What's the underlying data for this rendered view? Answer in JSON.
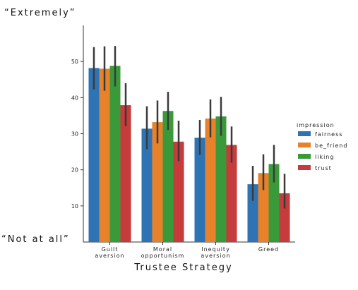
{
  "chart_data": {
    "type": "bar",
    "categories": [
      [
        "Guilt",
        "aversion"
      ],
      [
        "Moral",
        "opportunism"
      ],
      [
        "Inequity",
        "aversion"
      ],
      [
        "Greed"
      ]
    ],
    "xlabel": "Trustee Strategy",
    "ylabel": "",
    "ylim": [
      0,
      60
    ],
    "yticks": [
      10,
      20,
      30,
      40,
      50
    ],
    "top_anchor": "“Extremely”",
    "bottom_anchor": "“Not at all”",
    "legend_title": "impression",
    "legend_position": "right",
    "grid": false,
    "series": [
      {
        "name": "fairness",
        "color": "#2e74b5",
        "values": [
          48.2,
          31.4,
          28.9,
          16.0
        ],
        "err_low": [
          42.3,
          25.7,
          24.1,
          11.4
        ],
        "err_high": [
          54.0,
          37.6,
          33.8,
          21.1
        ]
      },
      {
        "name": "be_friend",
        "color": "#e8822a",
        "values": [
          48.0,
          33.2,
          34.2,
          19.1
        ],
        "err_low": [
          41.9,
          27.3,
          29.0,
          14.4
        ],
        "err_high": [
          54.2,
          39.2,
          39.5,
          24.3
        ]
      },
      {
        "name": "liking",
        "color": "#3a9a3a",
        "values": [
          48.8,
          36.3,
          34.8,
          21.6
        ],
        "err_low": [
          43.1,
          31.0,
          29.4,
          16.5
        ],
        "err_high": [
          54.3,
          41.6,
          40.2,
          26.9
        ]
      },
      {
        "name": "trust",
        "color": "#c63b3b",
        "values": [
          37.9,
          27.8,
          26.9,
          13.5
        ],
        "err_low": [
          32.1,
          22.4,
          22.0,
          9.3
        ],
        "err_high": [
          44.0,
          33.6,
          32.0,
          18.9
        ]
      }
    ]
  }
}
